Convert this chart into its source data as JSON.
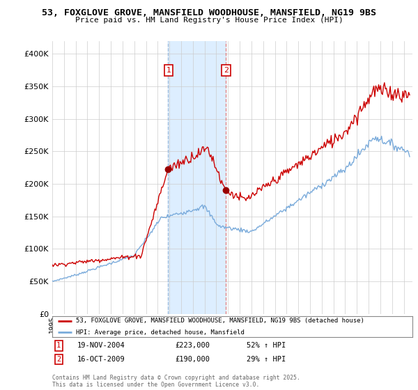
{
  "title_line1": "53, FOXGLOVE GROVE, MANSFIELD WOODHOUSE, MANSFIELD, NG19 9BS",
  "title_line2": "Price paid vs. HM Land Registry's House Price Index (HPI)",
  "background_color": "#ffffff",
  "grid_color": "#cccccc",
  "hpi_color": "#7aabdb",
  "price_color": "#cc0000",
  "highlight_color": "#ddeeff",
  "transaction1_date": "19-NOV-2004",
  "transaction1_price": 223000,
  "transaction1_pct": "52%",
  "transaction2_date": "16-OCT-2009",
  "transaction2_price": 190000,
  "transaction2_pct": "29%",
  "legend_line1": "53, FOXGLOVE GROVE, MANSFIELD WOODHOUSE, MANSFIELD, NG19 9BS (detached house)",
  "legend_line2": "HPI: Average price, detached house, Mansfield",
  "footnote": "Contains HM Land Registry data © Crown copyright and database right 2025.\nThis data is licensed under the Open Government Licence v3.0.",
  "ylim_max": 420000,
  "t1_year": 2004.88,
  "t2_year": 2009.79
}
